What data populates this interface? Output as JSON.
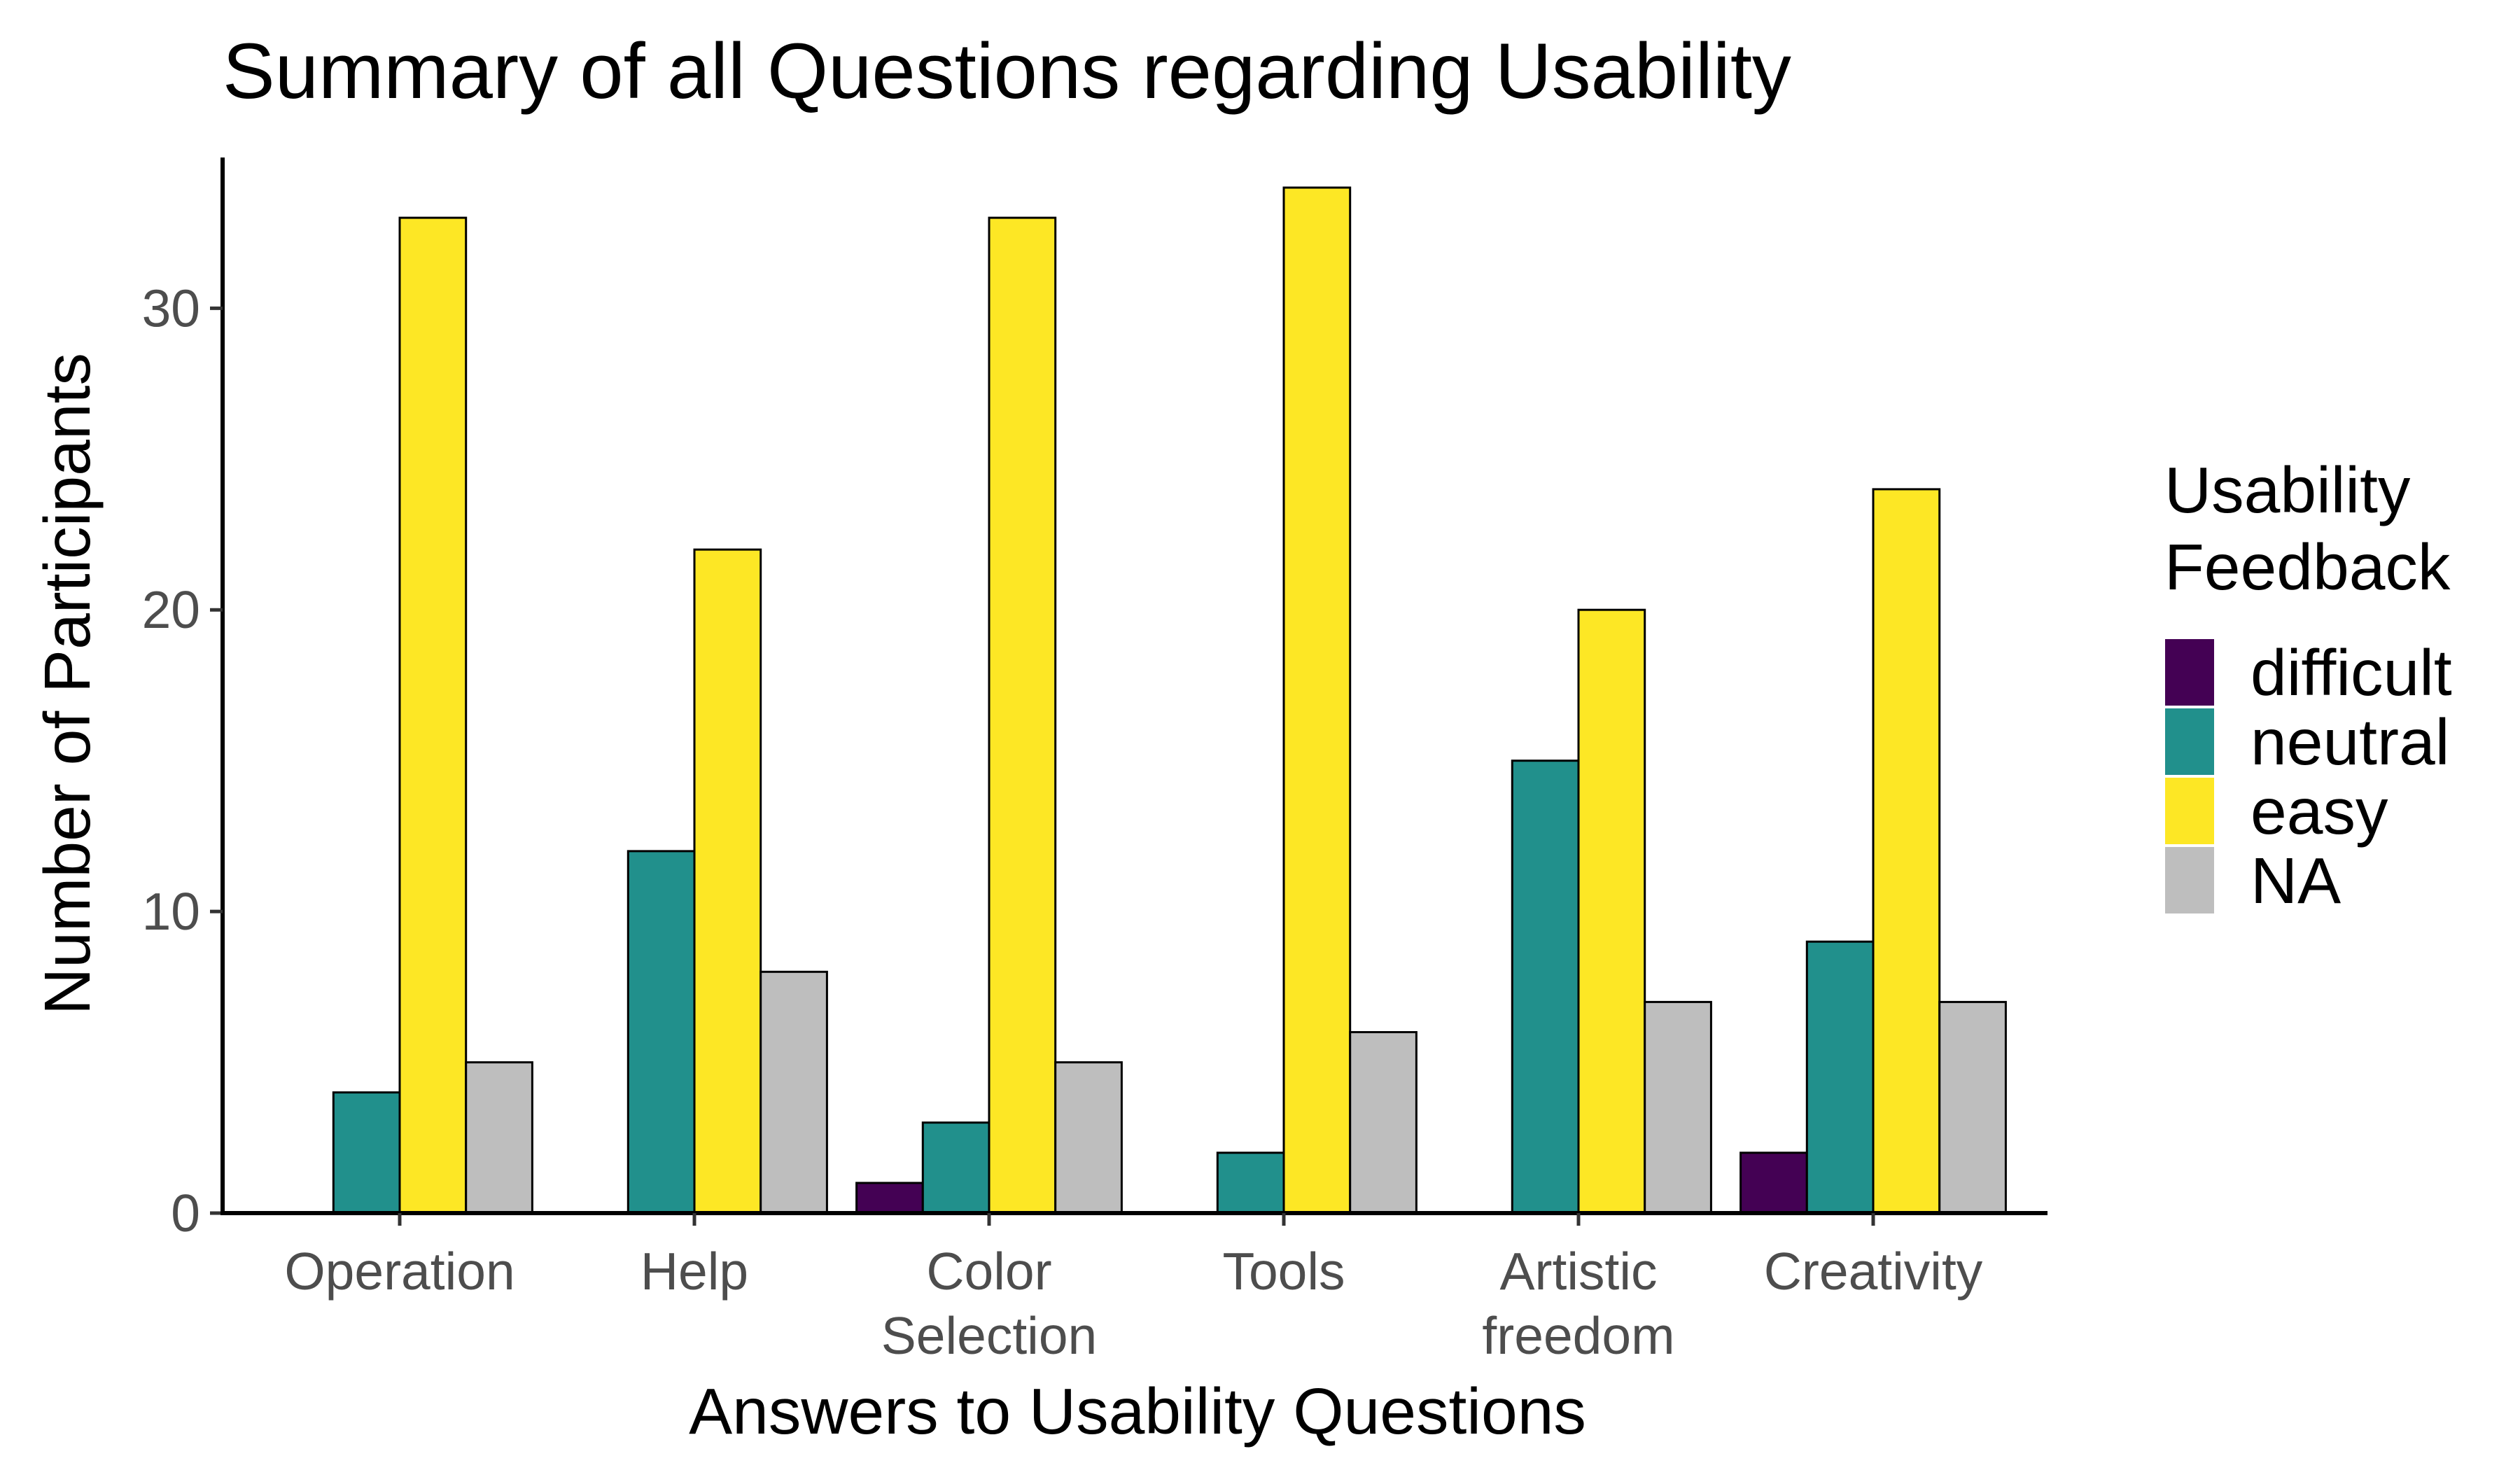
{
  "chart_data": {
    "type": "bar",
    "title": "Summary of all Questions regarding Usability",
    "xlabel": "Answers to Usability Questions",
    "ylabel": "Number of Participants",
    "ylim": [
      0,
      35
    ],
    "yticks": [
      0,
      10,
      20,
      30
    ],
    "categories": [
      [
        "Operation"
      ],
      [
        "Help"
      ],
      [
        "Color",
        "Selection"
      ],
      [
        "Tools"
      ],
      [
        "Artistic",
        "freedom"
      ],
      [
        "Creativity"
      ]
    ],
    "series": [
      {
        "name": "difficult",
        "color": "#440154",
        "values": [
          0,
          0,
          1,
          0,
          0,
          2
        ]
      },
      {
        "name": "neutral",
        "color": "#21908C",
        "values": [
          4,
          12,
          3,
          2,
          15,
          9
        ]
      },
      {
        "name": "easy",
        "color": "#FDE725",
        "values": [
          33,
          22,
          33,
          34,
          20,
          24
        ]
      },
      {
        "name": "NA",
        "color": "#BEBEBE",
        "values": [
          5,
          8,
          5,
          6,
          7,
          7
        ]
      }
    ],
    "legend": {
      "title": [
        "Usability",
        "Feedback"
      ],
      "position": "right"
    },
    "grid": false
  }
}
